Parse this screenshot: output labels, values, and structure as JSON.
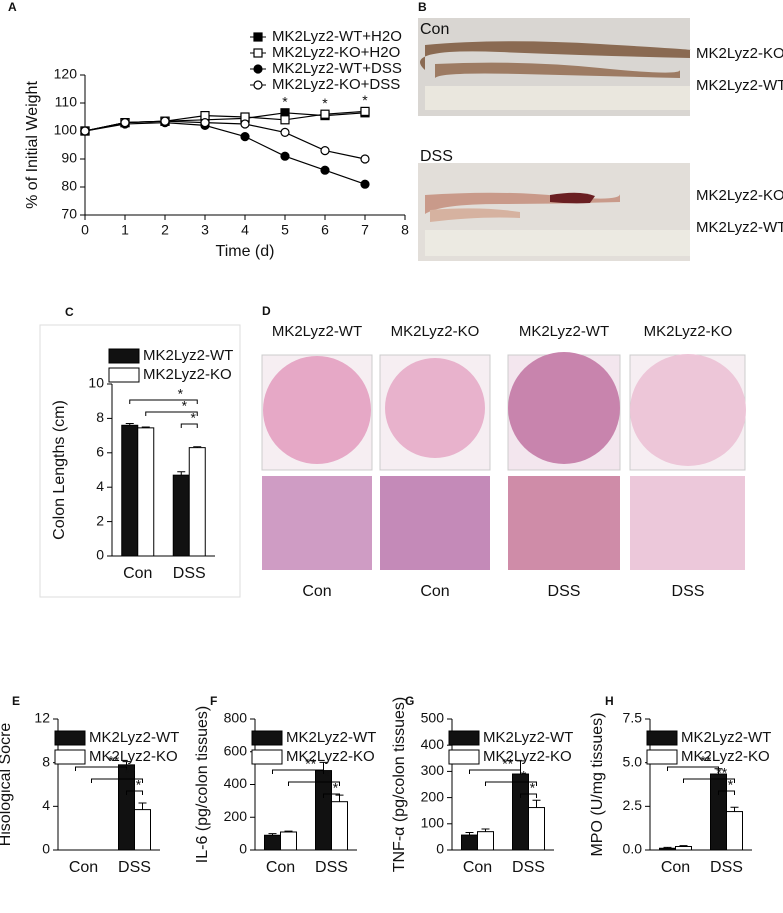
{
  "chart_data": [
    {
      "type": "line",
      "panel": "A",
      "xlabel": "Time (d)",
      "ylabel": "% of Initial Weight",
      "x": [
        0,
        1,
        2,
        3,
        4,
        5,
        6,
        7
      ],
      "xlim": [
        0,
        8
      ],
      "xticks": [
        0,
        1,
        2,
        3,
        4,
        5,
        6,
        7,
        8
      ],
      "ylim": [
        70,
        120
      ],
      "yticks": [
        70,
        80,
        90,
        100,
        110,
        120
      ],
      "series": [
        {
          "name": "MK2Lyz2-WT+H2O",
          "color": "#000000",
          "marker": "square",
          "filled": true,
          "values": [
            100,
            103,
            103.5,
            104,
            104.5,
            106.5,
            105.5,
            106.5
          ]
        },
        {
          "name": "MK2Lyz2-KO+H2O",
          "color": "#000000",
          "marker": "square",
          "filled": false,
          "values": [
            100,
            103,
            103.5,
            105.5,
            105,
            104,
            106,
            107
          ]
        },
        {
          "name": "MK2Lyz2-WT+DSS",
          "color": "#000000",
          "marker": "circle",
          "filled": true,
          "values": [
            100,
            102.5,
            103,
            102,
            98,
            91,
            86,
            81
          ]
        },
        {
          "name": "MK2Lyz2-KO+DSS",
          "color": "#000000",
          "marker": "circle",
          "filled": false,
          "values": [
            100,
            103,
            103.5,
            103,
            102.5,
            99.5,
            93,
            90
          ]
        }
      ],
      "significance": [
        null,
        null,
        null,
        null,
        null,
        "*",
        "*",
        "*"
      ]
    },
    {
      "type": "bar",
      "panel": "C",
      "ylabel": "Colon Lengths (cm)",
      "categories": [
        "Con",
        "DSS"
      ],
      "ylim": [
        0,
        10
      ],
      "yticks": [
        0,
        2,
        4,
        6,
        8,
        10
      ],
      "series": [
        {
          "name": "MK2Lyz2-WT",
          "color": "#111111",
          "values": [
            7.6,
            4.7
          ],
          "errors": [
            0.1,
            0.2
          ]
        },
        {
          "name": "MK2Lyz2-KO",
          "color": "#ffffff",
          "values": [
            7.45,
            6.3
          ],
          "errors": [
            0.05,
            0.05
          ]
        }
      ],
      "comparisons": [
        {
          "bars": [
            [
              0,
              0
            ],
            [
              1,
              1
            ]
          ],
          "label": "*"
        },
        {
          "bars": [
            [
              1,
              0
            ],
            [
              1,
              1
            ]
          ],
          "label": "*"
        },
        {
          "bars": [
            [
              0,
              1
            ],
            [
              1,
              1
            ]
          ],
          "label": "*"
        }
      ]
    },
    {
      "type": "bar",
      "panel": "E",
      "ylabel": "Hisological Socre",
      "categories": [
        "Con",
        "DSS"
      ],
      "ylim": [
        0,
        12
      ],
      "yticks": [
        0,
        4,
        8,
        12
      ],
      "series": [
        {
          "name": "MK2Lyz2-WT",
          "color": "#111111",
          "values": [
            0,
            7.8
          ],
          "errors": [
            0,
            0.3
          ]
        },
        {
          "name": "MK2Lyz2-KO",
          "color": "#ffffff",
          "values": [
            0,
            3.7
          ],
          "errors": [
            0,
            0.6
          ]
        }
      ],
      "comparisons": [
        {
          "bars": [
            [
              0,
              0
            ],
            [
              0,
              1
            ]
          ],
          "label": "**"
        },
        {
          "bars": [
            [
              1,
              0
            ],
            [
              1,
              1
            ]
          ],
          "label": "**"
        },
        {
          "bars": [
            [
              0,
              1
            ],
            [
              1,
              1
            ]
          ],
          "label": "*"
        }
      ]
    },
    {
      "type": "bar",
      "panel": "F",
      "ylabel": "IL-6 (pg/colon tissues)",
      "categories": [
        "Con",
        "DSS"
      ],
      "ylim": [
        0,
        800
      ],
      "yticks": [
        0,
        200,
        400,
        600,
        800
      ],
      "series": [
        {
          "name": "MK2Lyz2-WT",
          "color": "#111111",
          "values": [
            90,
            485
          ],
          "errors": [
            10,
            50
          ]
        },
        {
          "name": "MK2Lyz2-KO",
          "color": "#ffffff",
          "values": [
            110,
            295
          ],
          "errors": [
            5,
            40
          ]
        }
      ],
      "comparisons": [
        {
          "bars": [
            [
              0,
              0
            ],
            [
              0,
              1
            ]
          ],
          "label": "**"
        },
        {
          "bars": [
            [
              1,
              0
            ],
            [
              1,
              1
            ]
          ],
          "label": "*"
        },
        {
          "bars": [
            [
              0,
              1
            ],
            [
              1,
              1
            ]
          ],
          "label": "*"
        }
      ]
    },
    {
      "type": "bar",
      "panel": "G",
      "ylabel": "TNF-α (pg/colon tissues)",
      "categories": [
        "Con",
        "DSS"
      ],
      "ylim": [
        0,
        500
      ],
      "yticks": [
        0,
        100,
        200,
        300,
        400,
        500
      ],
      "series": [
        {
          "name": "MK2Lyz2-WT",
          "color": "#111111",
          "values": [
            57,
            290
          ],
          "errors": [
            10,
            50
          ]
        },
        {
          "name": "MK2Lyz2-KO",
          "color": "#ffffff",
          "values": [
            70,
            162
          ],
          "errors": [
            10,
            28
          ]
        }
      ],
      "comparisons": [
        {
          "bars": [
            [
              0,
              0
            ],
            [
              0,
              1
            ]
          ],
          "label": "**"
        },
        {
          "bars": [
            [
              1,
              0
            ],
            [
              1,
              1
            ]
          ],
          "label": "*"
        },
        {
          "bars": [
            [
              0,
              1
            ],
            [
              1,
              1
            ]
          ],
          "label": "*"
        }
      ]
    },
    {
      "type": "bar",
      "panel": "H",
      "ylabel": "MPO (U/mg tissues)",
      "categories": [
        "Con",
        "DSS"
      ],
      "ylim": [
        0,
        7.5
      ],
      "yticks": [
        {
          "value": 0,
          "label": "0.0"
        },
        2.5,
        {
          "value": 5,
          "label": "5.0"
        },
        7.5
      ],
      "series": [
        {
          "name": "MK2Lyz2-WT",
          "color": "#111111",
          "values": [
            0.1,
            4.35
          ],
          "errors": [
            0.05,
            0.3
          ]
        },
        {
          "name": "MK2Lyz2-KO",
          "color": "#ffffff",
          "values": [
            0.2,
            2.2
          ],
          "errors": [
            0.05,
            0.25
          ]
        }
      ],
      "comparisons": [
        {
          "bars": [
            [
              0,
              0
            ],
            [
              0,
              1
            ]
          ],
          "label": "**"
        },
        {
          "bars": [
            [
              1,
              0
            ],
            [
              1,
              1
            ]
          ],
          "label": "**"
        },
        {
          "bars": [
            [
              0,
              1
            ],
            [
              1,
              1
            ]
          ],
          "label": "*"
        }
      ]
    }
  ],
  "images": {
    "B": {
      "panel": "B",
      "groups": [
        {
          "title": "Con",
          "labels": [
            "MK2Lyz2-KO",
            "MK2Lyz2-WT"
          ]
        },
        {
          "title": "DSS",
          "labels": [
            "MK2Lyz2-KO",
            "MK2Lyz2-WT"
          ]
        }
      ]
    },
    "D": {
      "panel": "D",
      "columns": [
        {
          "title": "MK2Lyz2-WT",
          "group": "Con"
        },
        {
          "title": "MK2Lyz2-KO",
          "group": "Con"
        },
        {
          "title": "MK2Lyz2-WT",
          "group": "DSS"
        },
        {
          "title": "MK2Lyz2-KO",
          "group": "DSS"
        }
      ]
    }
  }
}
